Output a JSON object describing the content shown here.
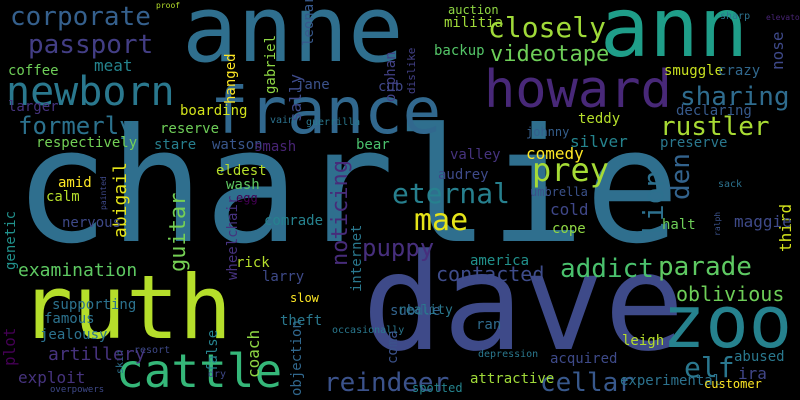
{
  "words": [
    {
      "text": "charlie",
      "color": "#2f6f8e"
    },
    {
      "text": "anne",
      "color": "#2f6f8e"
    },
    {
      "text": "ann",
      "color": "#1f9e89"
    },
    {
      "text": "dave",
      "color": "#3e4a89"
    },
    {
      "text": "ruth",
      "color": "#b5de2b"
    },
    {
      "text": "france",
      "color": "#31688e"
    },
    {
      "text": "howard",
      "color": "#482878"
    },
    {
      "text": "zoo",
      "color": "#26828e"
    },
    {
      "text": "newborn",
      "color": "#2a788e"
    },
    {
      "text": "cattle",
      "color": "#35b779"
    },
    {
      "text": "corporate",
      "color": "#35608d"
    },
    {
      "text": "passport",
      "color": "#433e85"
    },
    {
      "text": "closely",
      "color": "#a0da39"
    },
    {
      "text": "videotape",
      "color": "#6ece58"
    },
    {
      "text": "formerly",
      "color": "#2c728e"
    },
    {
      "text": "sharing",
      "color": "#2f6c8e"
    },
    {
      "text": "rustler",
      "color": "#a8db34"
    },
    {
      "text": "eternal",
      "color": "#27808e"
    },
    {
      "text": "prey",
      "color": "#a5db36"
    },
    {
      "text": "mae",
      "color": "#e5e419"
    },
    {
      "text": "parade",
      "color": "#5ec962"
    },
    {
      "text": "addict",
      "color": "#4ac16d"
    },
    {
      "text": "reindeer",
      "color": "#3b528b"
    },
    {
      "text": "cellar",
      "color": "#38588c"
    },
    {
      "text": "elf",
      "color": "#2a778e"
    },
    {
      "text": "contacted",
      "color": "#3e4c8a"
    },
    {
      "text": "oblivious",
      "color": "#6ece58"
    },
    {
      "text": "examination",
      "color": "#5ec962"
    },
    {
      "text": "puppy",
      "color": "#472f7d"
    },
    {
      "text": "noticing",
      "color": "#472c7a"
    },
    {
      "text": "guitar",
      "color": "#75d054"
    },
    {
      "text": "lion",
      "color": "#2d708e"
    },
    {
      "text": "den",
      "color": "#33638d"
    },
    {
      "text": "abigail",
      "color": "#e5e419"
    },
    {
      "text": "hanged",
      "color": "#fde725"
    },
    {
      "text": "gabriel",
      "color": "#8fd744"
    },
    {
      "text": "sally",
      "color": "#3e4a89"
    },
    {
      "text": "leonard",
      "color": "#38598c"
    },
    {
      "text": "orphan",
      "color": "#424186"
    },
    {
      "text": "dislike",
      "color": "#424086"
    },
    {
      "text": "nose",
      "color": "#3e4989"
    },
    {
      "text": "third",
      "color": "#d2e21b"
    },
    {
      "text": "genetic",
      "color": "#21918c"
    },
    {
      "text": "plot",
      "color": "#440154"
    },
    {
      "text": "coach",
      "color": "#8fd744"
    },
    {
      "text": "false",
      "color": "#26828e"
    },
    {
      "text": "coma",
      "color": "#3b528b"
    },
    {
      "text": "wheelchair",
      "color": "#46327e"
    },
    {
      "text": "internet",
      "color": "#2a788e"
    },
    {
      "text": "objection",
      "color": "#31688e"
    },
    {
      "text": "skin",
      "color": "#2c728e"
    },
    {
      "text": "ralph",
      "color": "#3b528b"
    },
    {
      "text": "painted",
      "color": "#3e4989"
    },
    {
      "text": "coffee",
      "color": "#6ece58"
    },
    {
      "text": "meat",
      "color": "#25848e"
    },
    {
      "text": "larger",
      "color": "#46337e"
    },
    {
      "text": "reserve",
      "color": "#6ece58"
    },
    {
      "text": "stare",
      "color": "#277f8e"
    },
    {
      "text": "respectively",
      "color": "#73d056"
    },
    {
      "text": "boarding",
      "color": "#d2e21b"
    },
    {
      "text": "watson",
      "color": "#39568c"
    },
    {
      "text": "smash",
      "color": "#482475"
    },
    {
      "text": "jane",
      "color": "#3b528b"
    },
    {
      "text": "cub",
      "color": "#3f4788"
    },
    {
      "text": "auction",
      "color": "#8fd744"
    },
    {
      "text": "militia",
      "color": "#a0da39"
    },
    {
      "text": "backup",
      "color": "#54c568"
    },
    {
      "text": "smuggle",
      "color": "#c8e020"
    },
    {
      "text": "crazy",
      "color": "#31688e"
    },
    {
      "text": "teddy",
      "color": "#b5de2b"
    },
    {
      "text": "declaring",
      "color": "#375a8c"
    },
    {
      "text": "preserve",
      "color": "#2a788e"
    },
    {
      "text": "silver",
      "color": "#25848e"
    },
    {
      "text": "bear",
      "color": "#4ac16d"
    },
    {
      "text": "johnny",
      "color": "#355f8d"
    },
    {
      "text": "valley",
      "color": "#46337e"
    },
    {
      "text": "comedy",
      "color": "#fde725"
    },
    {
      "text": "audrey",
      "color": "#3e4a89"
    },
    {
      "text": "umbrella",
      "color": "#3b528b"
    },
    {
      "text": "cold",
      "color": "#3f4788"
    },
    {
      "text": "cope",
      "color": "#8fd744"
    },
    {
      "text": "halt",
      "color": "#6ece58"
    },
    {
      "text": "maggie",
      "color": "#3e4a89"
    },
    {
      "text": "sack",
      "color": "#2c728e"
    },
    {
      "text": "amid",
      "color": "#fde725"
    },
    {
      "text": "calm",
      "color": "#b5de2b"
    },
    {
      "text": "nervous",
      "color": "#3e4989"
    },
    {
      "text": "wash",
      "color": "#5ec962"
    },
    {
      "text": "egg",
      "color": "#440154"
    },
    {
      "text": "eldest",
      "color": "#b5de2b"
    },
    {
      "text": "comrade",
      "color": "#26828e"
    },
    {
      "text": "rick",
      "color": "#b5de2b"
    },
    {
      "text": "larry",
      "color": "#3e4a89"
    },
    {
      "text": "slow",
      "color": "#fde725"
    },
    {
      "text": "theft",
      "color": "#2a788e"
    },
    {
      "text": "subdue",
      "color": "#33638d"
    },
    {
      "text": "reality",
      "color": "#2a788e"
    },
    {
      "text": "america",
      "color": "#21918c"
    },
    {
      "text": "ran",
      "color": "#2f6c8e"
    },
    {
      "text": "leigh",
      "color": "#b5de2b"
    },
    {
      "text": "abused",
      "color": "#2a788e"
    },
    {
      "text": "ira",
      "color": "#404688"
    },
    {
      "text": "acquired",
      "color": "#3e4a89"
    },
    {
      "text": "attractive",
      "color": "#a0da39"
    },
    {
      "text": "experimental",
      "color": "#2c728e"
    },
    {
      "text": "customer",
      "color": "#fde725"
    },
    {
      "text": "depression",
      "color": "#2a788e"
    },
    {
      "text": "spotted",
      "color": "#25848e"
    },
    {
      "text": "supporting",
      "color": "#2c728e"
    },
    {
      "text": "famous",
      "color": "#2c728e"
    },
    {
      "text": "jealousy",
      "color": "#2c728e"
    },
    {
      "text": "artillery",
      "color": "#46337e"
    },
    {
      "text": "exploit",
      "color": "#46337e"
    },
    {
      "text": "resort",
      "color": "#3e4989"
    },
    {
      "text": "dry",
      "color": "#3e4989"
    },
    {
      "text": "occasionally",
      "color": "#2a788e"
    },
    {
      "text": "guerrilla",
      "color": "#2a788e"
    },
    {
      "text": "vain",
      "color": "#2c728e"
    },
    {
      "text": "sharp",
      "color": "#2c728e"
    },
    {
      "text": "proof",
      "color": "#b5de2b"
    },
    {
      "text": "elevator",
      "color": "#482475"
    },
    {
      "text": "overpowers",
      "color": "#3e4989"
    },
    {
      "text": "du",
      "color": "#3e4989"
    }
  ]
}
